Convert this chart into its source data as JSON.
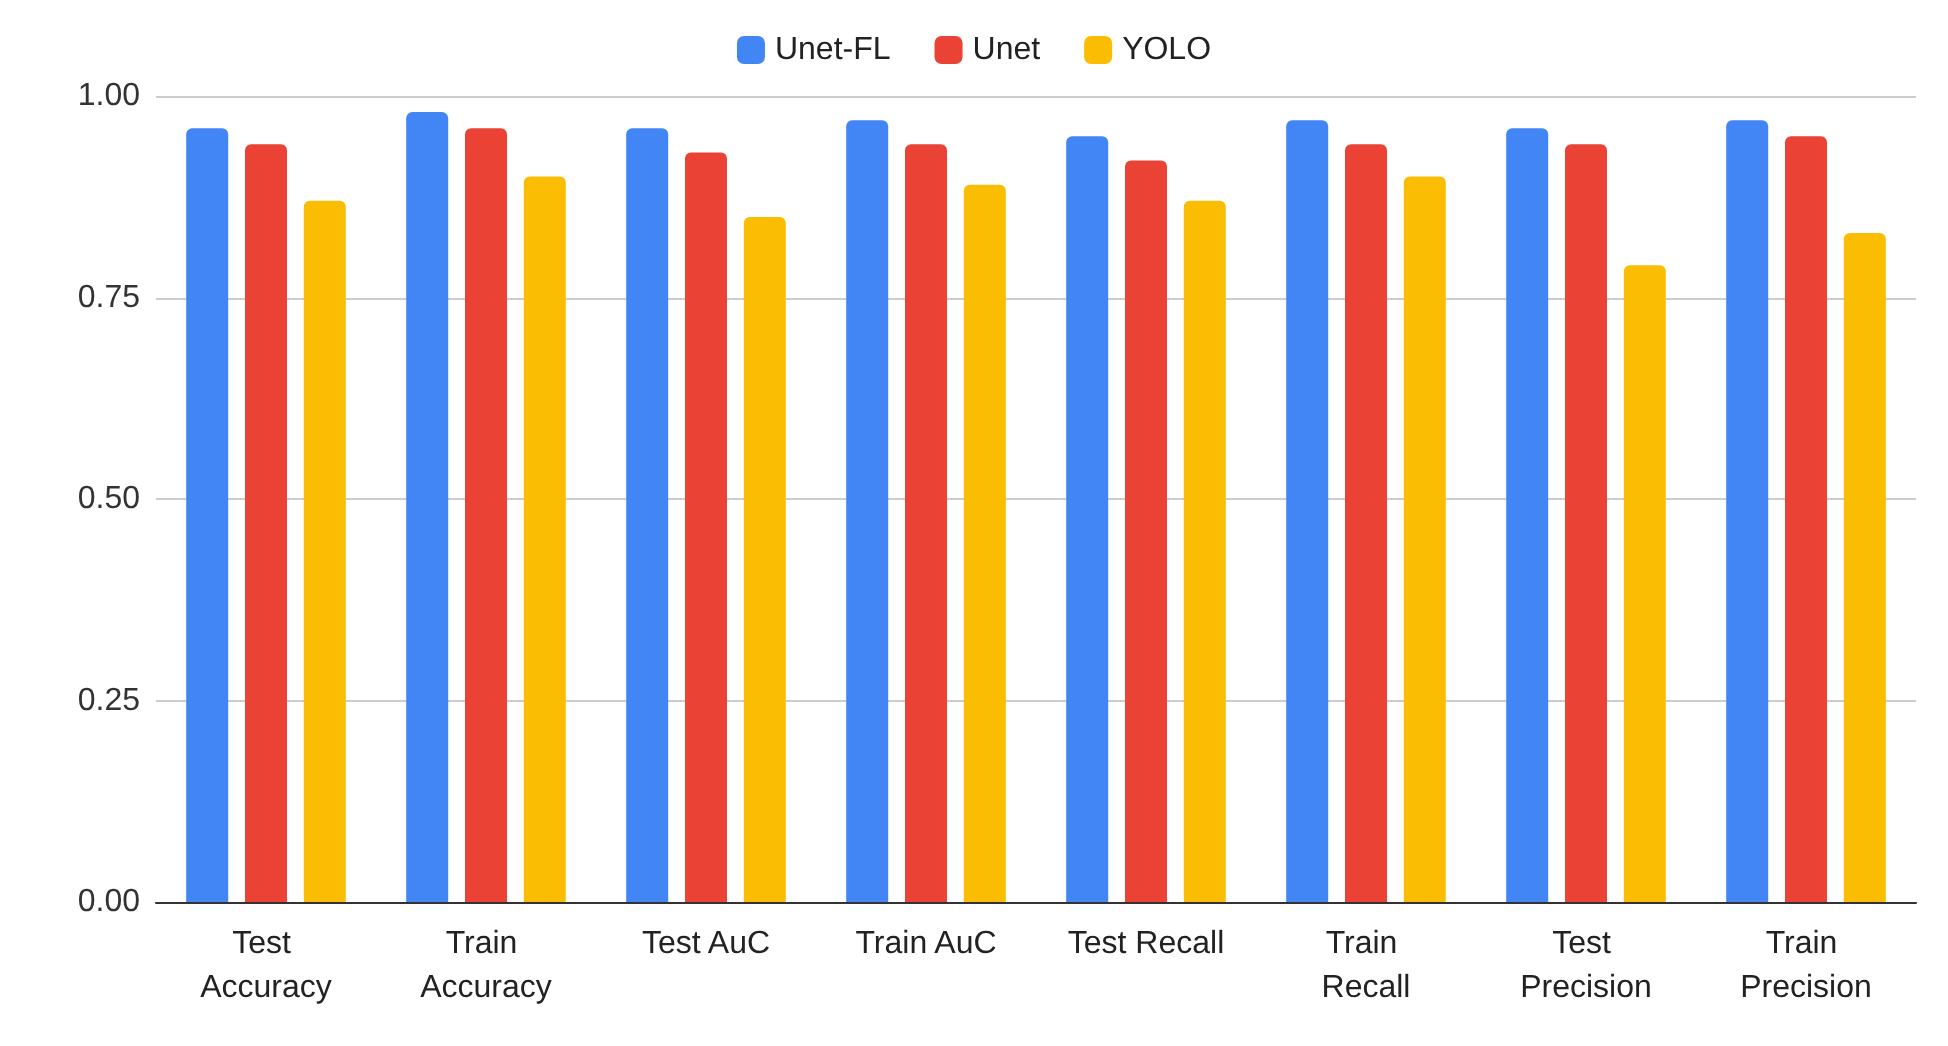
{
  "chart_data": {
    "type": "bar",
    "categories": [
      "Test Accuracy",
      "Train Accuracy",
      "Test AuC",
      "Train AuC",
      "Test Recall",
      "Train Recall",
      "Test Precision",
      "Train Precision"
    ],
    "series": [
      {
        "name": "Unet-FL",
        "color": "#4285f4",
        "values": [
          0.96,
          0.98,
          0.96,
          0.97,
          0.95,
          0.97,
          0.96,
          0.97
        ]
      },
      {
        "name": "Unet",
        "color": "#ea4335",
        "values": [
          0.94,
          0.96,
          0.93,
          0.94,
          0.92,
          0.94,
          0.94,
          0.95
        ]
      },
      {
        "name": "YOLO",
        "color": "#fbbc04",
        "values": [
          0.87,
          0.9,
          0.85,
          0.89,
          0.87,
          0.9,
          0.79,
          0.83
        ]
      }
    ],
    "ylim": [
      0,
      1
    ],
    "yticks": [
      {
        "value": 0,
        "label": "0.00"
      },
      {
        "value": 0.25,
        "label": "0.25"
      },
      {
        "value": 0.5,
        "label": "0.50"
      },
      {
        "value": 0.75,
        "label": "0.75"
      },
      {
        "value": 1,
        "label": "1.00"
      }
    ],
    "grid": "y",
    "legend": "top"
  }
}
